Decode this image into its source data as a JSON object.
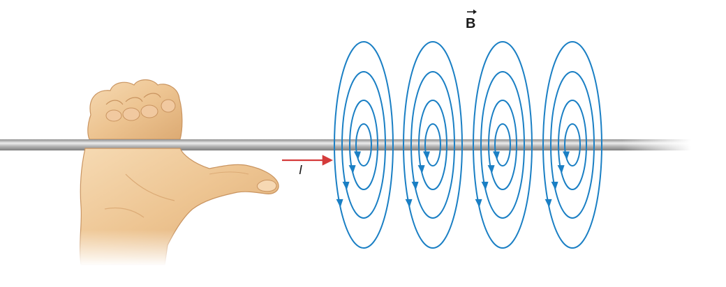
{
  "figure": {
    "field_label": "B",
    "current_label": "I"
  },
  "colors": {
    "background": "#ffffff",
    "field_lines": "#1a7fc4",
    "current_arrow": "#d43b3b",
    "wire_light": "#ececec",
    "wire_mid": "#b9b9b9",
    "wire_dark": "#8e8e8e",
    "skin_light": "#f4d3a8",
    "skin_mid": "#e7b883",
    "skin_shadow": "#c99460",
    "label_text": "#1a1a1a"
  },
  "icons": {
    "hand": "right-hand-thumb-icon",
    "vector_arrow": "vector-arrow-icon"
  }
}
